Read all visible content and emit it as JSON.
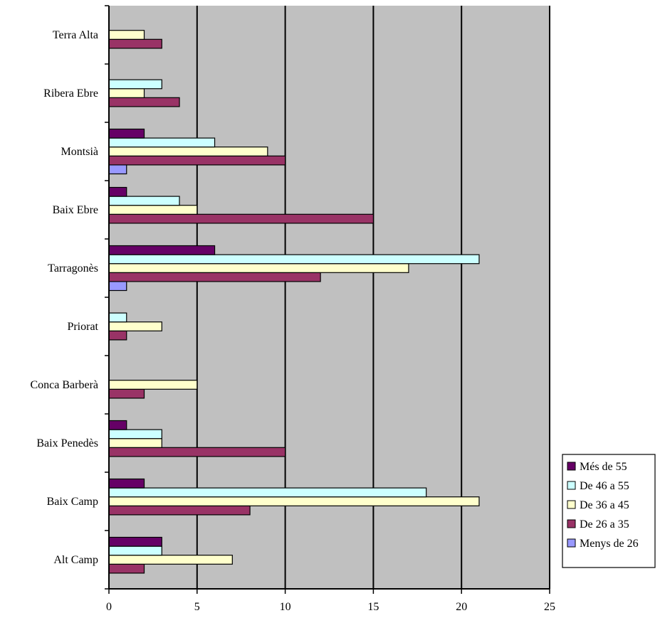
{
  "chart_data": {
    "type": "bar",
    "orientation": "horizontal",
    "categories": [
      "Alt Camp",
      "Baix Camp",
      "Baix Penedès",
      "Conca Barberà",
      "Priorat",
      "Tarragonès",
      "Baix Ebre",
      "Montsià",
      "Ribera Ebre",
      "Terra Alta"
    ],
    "series": [
      {
        "name": "Menys de 26",
        "color": "#9999ff",
        "values": [
          0,
          0,
          0,
          0,
          0,
          1,
          0,
          1,
          0,
          0
        ]
      },
      {
        "name": "De 26 a 35",
        "color": "#993366",
        "values": [
          2,
          8,
          10,
          2,
          1,
          12,
          15,
          10,
          4,
          3
        ]
      },
      {
        "name": "De 36 a 45",
        "color": "#ffffcc",
        "values": [
          7,
          21,
          3,
          5,
          3,
          17,
          5,
          9,
          2,
          2
        ]
      },
      {
        "name": "De 46 a 55",
        "color": "#ccffff",
        "values": [
          3,
          18,
          3,
          0,
          1,
          21,
          4,
          6,
          3,
          0
        ]
      },
      {
        "name": "Més de 55",
        "color": "#660066",
        "values": [
          3,
          2,
          1,
          0,
          0,
          6,
          1,
          2,
          0,
          0
        ]
      }
    ],
    "xlim": [
      0,
      25
    ],
    "xticks": [
      "0",
      "5",
      "10",
      "15",
      "20",
      "25"
    ],
    "legend_order": [
      "Més de 55",
      "De 46 a 55",
      "De 36 a 45",
      "De 26 a 35",
      "Menys de 26"
    ],
    "legend_position": "bottom-right",
    "plot_background": "#c0c0c0",
    "grid": "vertical"
  }
}
